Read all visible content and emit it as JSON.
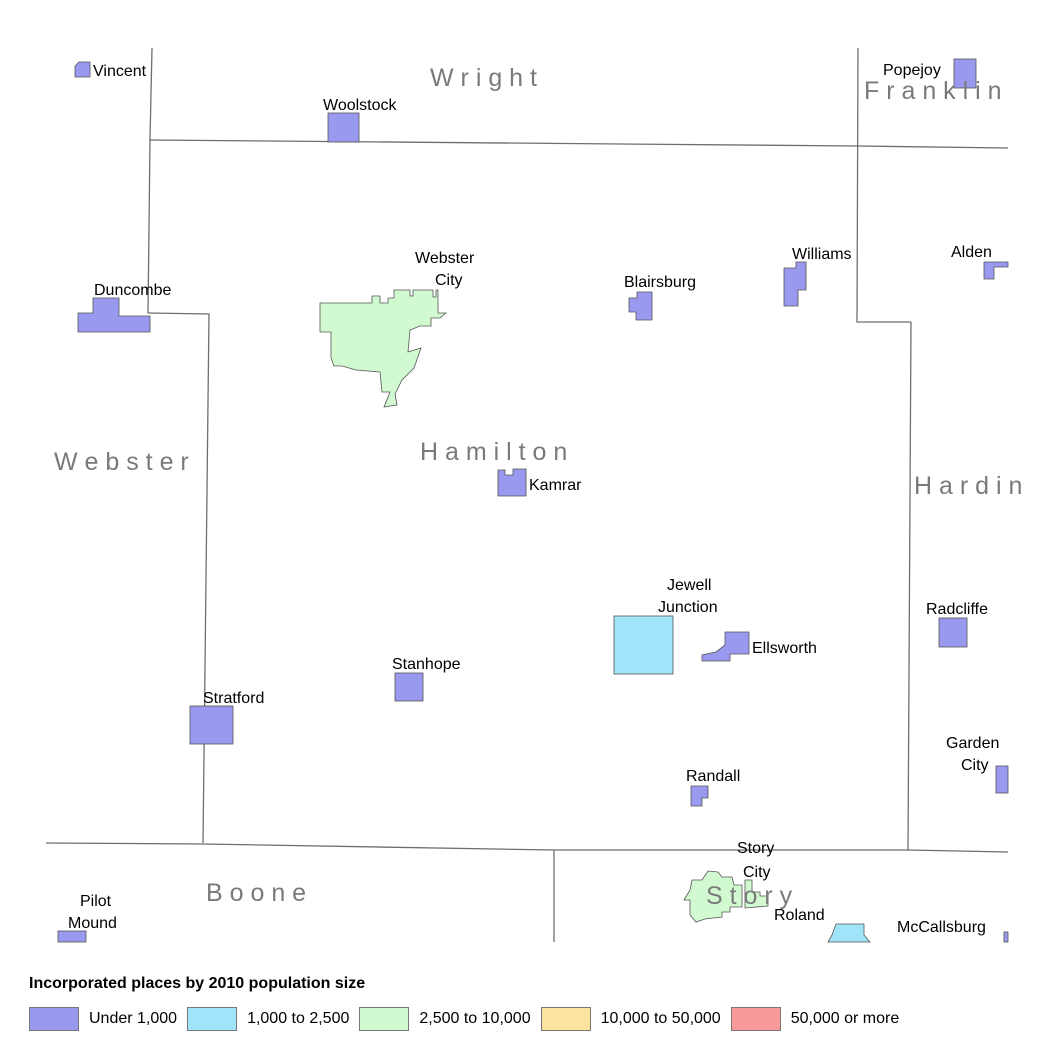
{
  "counties": {
    "wright": "W r i g h t",
    "franklin": "F r a n k l i n",
    "webster": "W e b s t e r",
    "hamilton": "H a m i l t o n",
    "hardin": "H a r d i n",
    "boone": "B o o n e",
    "story": "S t o r y"
  },
  "places": {
    "vincent": "Vincent",
    "woolstock": "Woolstock",
    "popejoy": "Popejoy",
    "webster_city_1": "Webster",
    "webster_city_2": "City",
    "blairsburg": "Blairsburg",
    "williams": "Williams",
    "alden": "Alden",
    "duncombe": "Duncombe",
    "kamrar": "Kamrar",
    "jewell_junction_1": "Jewell",
    "jewell_junction_2": "Junction",
    "ellsworth": "Ellsworth",
    "radcliffe": "Radcliffe",
    "stanhope": "Stanhope",
    "stratford": "Stratford",
    "garden_city_1": "Garden",
    "garden_city_2": "City",
    "randall": "Randall",
    "story_city_1": "Story",
    "story_city_2": "City",
    "roland": "Roland",
    "mccallsburg": "McCallsburg",
    "pilot_mound_1": "Pilot",
    "pilot_mound_2": "Mound"
  },
  "legend": {
    "title": "Incorporated places by 2010 population size",
    "items": [
      {
        "label": "Under 1,000",
        "color": "#9999f0"
      },
      {
        "label": "1,000 to 2,500",
        "color": "#a0e4fa"
      },
      {
        "label": "2,500 to 10,000",
        "color": "#d2fad0"
      },
      {
        "label": "10,000 to 50,000",
        "color": "#fce3a0"
      },
      {
        "label": "50,000 or more",
        "color": "#f99999"
      }
    ]
  }
}
